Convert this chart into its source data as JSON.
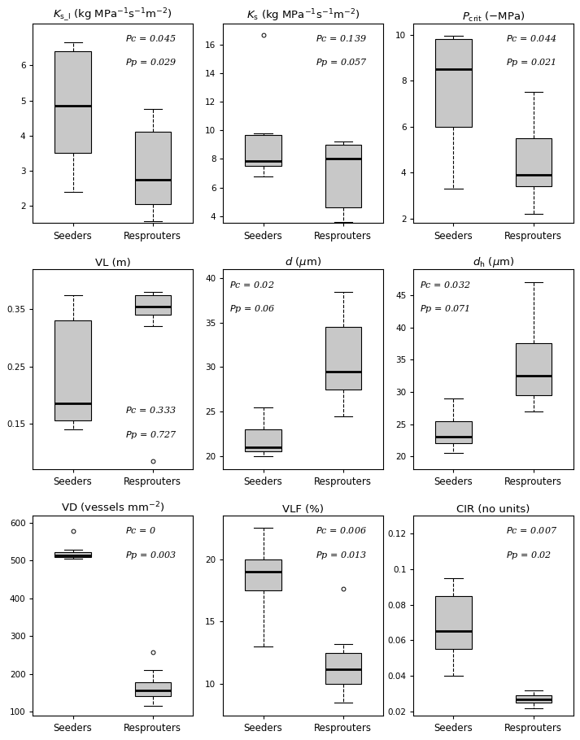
{
  "plots": [
    {
      "title": "$K_{\\mathrm{s\\_l}}$ (kg MPa$^{-1}$s$^{-1}$m$^{-2}$)",
      "pc": "0.045",
      "pp": "0.029",
      "seeders": {
        "whislo": 2.4,
        "q1": 3.5,
        "med": 4.85,
        "q3": 6.4,
        "whishi": 6.65,
        "fliers": []
      },
      "resprouters": {
        "whislo": 1.55,
        "q1": 2.05,
        "med": 2.75,
        "q3": 4.1,
        "whishi": 4.75,
        "fliers": []
      },
      "ylim": [
        1.5,
        7.2
      ],
      "yticks": [
        2,
        3,
        4,
        5,
        6
      ],
      "annotation_pos": "upper right"
    },
    {
      "title": "$K_{\\mathrm{s}}$ (kg MPa$^{-1}$s$^{-1}$m$^{-2}$)",
      "pc": "0.139",
      "pp": "0.057",
      "seeders": {
        "whislo": 6.8,
        "q1": 7.5,
        "med": 7.85,
        "q3": 9.7,
        "whishi": 9.8,
        "fliers": [
          16.7
        ]
      },
      "resprouters": {
        "whislo": 3.6,
        "q1": 4.6,
        "med": 8.0,
        "q3": 9.0,
        "whishi": 9.2,
        "fliers": []
      },
      "ylim": [
        3.5,
        17.5
      ],
      "yticks": [
        4,
        6,
        8,
        10,
        12,
        14,
        16
      ],
      "annotation_pos": "upper right"
    },
    {
      "title": "$P_{\\mathrm{crit}}$ ($-$MPa)",
      "pc": "0.044",
      "pp": "0.021",
      "seeders": {
        "whislo": 3.3,
        "q1": 6.0,
        "med": 8.5,
        "q3": 9.8,
        "whishi": 9.95,
        "fliers": []
      },
      "resprouters": {
        "whislo": 2.2,
        "q1": 3.4,
        "med": 3.9,
        "q3": 5.5,
        "whishi": 7.5,
        "fliers": []
      },
      "ylim": [
        1.8,
        10.5
      ],
      "yticks": [
        2,
        4,
        6,
        8,
        10
      ],
      "annotation_pos": "upper right"
    },
    {
      "title": "VL (m)",
      "pc": "0.333",
      "pp": "0.727",
      "seeders": {
        "whislo": 0.14,
        "q1": 0.155,
        "med": 0.185,
        "q3": 0.33,
        "whishi": 0.375,
        "fliers": []
      },
      "resprouters": {
        "whislo": 0.32,
        "q1": 0.34,
        "med": 0.355,
        "q3": 0.375,
        "whishi": 0.38,
        "fliers": [
          0.085
        ]
      },
      "ylim": [
        0.07,
        0.42
      ],
      "yticks": [
        0.15,
        0.25,
        0.35
      ],
      "annotation_pos": "lower right"
    },
    {
      "title": "$d$ ($\\mu$m)",
      "pc": "0.02",
      "pp": "0.06",
      "seeders": {
        "whislo": 20.0,
        "q1": 20.5,
        "med": 21.0,
        "q3": 23.0,
        "whishi": 25.5,
        "fliers": []
      },
      "resprouters": {
        "whislo": 24.5,
        "q1": 27.5,
        "med": 29.5,
        "q3": 34.5,
        "whishi": 38.5,
        "fliers": []
      },
      "ylim": [
        18.5,
        41.0
      ],
      "yticks": [
        20,
        25,
        30,
        35,
        40
      ],
      "annotation_pos": "upper left"
    },
    {
      "title": "$d_{\\mathrm{h}}$ ($\\mu$m)",
      "pc": "0.032",
      "pp": "0.071",
      "seeders": {
        "whislo": 20.5,
        "q1": 22.0,
        "med": 23.0,
        "q3": 25.5,
        "whishi": 29.0,
        "fliers": []
      },
      "resprouters": {
        "whislo": 27.0,
        "q1": 29.5,
        "med": 32.5,
        "q3": 37.5,
        "whishi": 47.0,
        "fliers": []
      },
      "ylim": [
        18.0,
        49.0
      ],
      "yticks": [
        20,
        25,
        30,
        35,
        40,
        45
      ],
      "annotation_pos": "upper left"
    },
    {
      "title": "VD (vessels mm$^{-2}$)",
      "pc": "0",
      "pp": "0.003",
      "seeders": {
        "whislo": 505.0,
        "q1": 510.0,
        "med": 515.0,
        "q3": 522.0,
        "whishi": 528.0,
        "fliers": [
          578.0
        ]
      },
      "resprouters": {
        "whislo": 115.0,
        "q1": 140.0,
        "med": 155.0,
        "q3": 178.0,
        "whishi": 210.0,
        "fliers": [
          258.0
        ]
      },
      "ylim": [
        90.0,
        620.0
      ],
      "yticks": [
        100,
        200,
        300,
        400,
        500,
        600
      ],
      "annotation_pos": "upper right"
    },
    {
      "title": "VLF (%)",
      "pc": "0.006",
      "pp": "0.013",
      "seeders": {
        "whislo": 13.0,
        "q1": 17.5,
        "med": 19.0,
        "q3": 20.0,
        "whishi": 22.5,
        "fliers": []
      },
      "resprouters": {
        "whislo": 8.5,
        "q1": 10.0,
        "med": 11.2,
        "q3": 12.5,
        "whishi": 13.2,
        "fliers": [
          17.6
        ]
      },
      "ylim": [
        7.5,
        23.5
      ],
      "yticks": [
        10,
        15,
        20
      ],
      "annotation_pos": "upper right"
    },
    {
      "title": "CIR (no units)",
      "pc": "0.007",
      "pp": "0.02",
      "seeders": {
        "whislo": 0.04,
        "q1": 0.055,
        "med": 0.065,
        "q3": 0.085,
        "whishi": 0.095,
        "fliers": []
      },
      "resprouters": {
        "whislo": 0.022,
        "q1": 0.025,
        "med": 0.027,
        "q3": 0.029,
        "whishi": 0.032,
        "fliers": []
      },
      "ylim": [
        0.018,
        0.13
      ],
      "yticks": [
        0.02,
        0.04,
        0.06,
        0.08,
        0.1,
        0.12
      ],
      "annotation_pos": "upper right"
    }
  ],
  "box_color": "#c8c8c8",
  "box_edgecolor": "#000000",
  "median_color": "#000000",
  "whisker_color": "#000000",
  "flier_color": "#000000",
  "background_color": "#ffffff",
  "label_fontsize": 8.5,
  "title_fontsize": 9.5,
  "annotation_fontsize": 8,
  "tick_fontsize": 7.5
}
